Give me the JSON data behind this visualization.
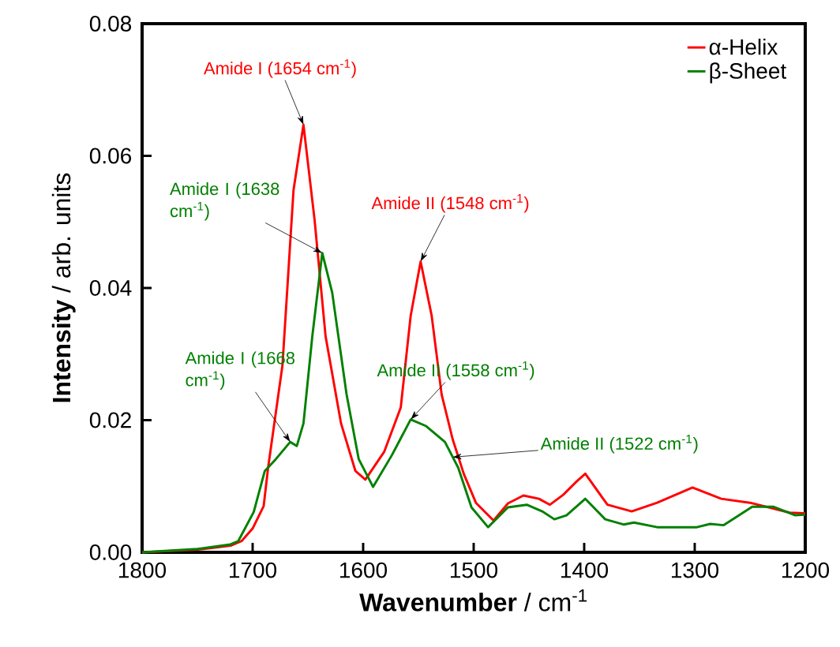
{
  "chart_data": {
    "type": "line",
    "xlabel": "**Wavenumber** / cm$^{-1}$",
    "ylabel": "**Intensity** / arb. units",
    "xlim": [
      1800,
      1200
    ],
    "xticks": [
      1800,
      1700,
      1600,
      1500,
      1400,
      1300,
      1200
    ],
    "ylim": [
      0,
      0.08
    ],
    "yticks": [
      {
        "value": 0,
        "label": "0.00"
      },
      {
        "value": 0.02,
        "label": "0.02"
      },
      {
        "value": 0.04,
        "label": "0.04"
      },
      {
        "value": 0.06,
        "label": "0.06"
      },
      {
        "value": 0.08,
        "label": "0.08"
      }
    ],
    "grid": false,
    "legend": "top right",
    "marker": "none",
    "line_style": "solid",
    "series": [
      {
        "name": "α-Helix",
        "color": "#ff0000",
        "x": [
          1800,
          1750,
          1720,
          1710,
          1700,
          1690,
          1686,
          1673,
          1663,
          1654,
          1644,
          1634,
          1620,
          1607,
          1598,
          1581,
          1566,
          1557,
          1548,
          1538,
          1529,
          1519,
          1509,
          1498,
          1482,
          1469,
          1455,
          1441,
          1431,
          1419,
          1407,
          1399,
          1379,
          1357,
          1334,
          1302,
          1276,
          1250,
          1214,
          1200
        ],
        "values": [
          0,
          0.0004,
          0.001,
          0.0017,
          0.0036,
          0.007,
          0.0128,
          0.0283,
          0.0548,
          0.0647,
          0.0504,
          0.0327,
          0.0195,
          0.0123,
          0.011,
          0.0152,
          0.0219,
          0.0358,
          0.044,
          0.0358,
          0.0239,
          0.0171,
          0.0119,
          0.0075,
          0.0048,
          0.0074,
          0.0086,
          0.0081,
          0.0072,
          0.0087,
          0.0107,
          0.0119,
          0.0072,
          0.0062,
          0.0075,
          0.0098,
          0.0081,
          0.0075,
          0.006,
          0.0059
        ]
      },
      {
        "name": "β-Sheet",
        "color": "#008000",
        "x": [
          1800,
          1750,
          1720,
          1713,
          1699,
          1689,
          1679,
          1666,
          1660,
          1654,
          1646,
          1637,
          1628,
          1615,
          1604,
          1591,
          1574,
          1557,
          1543,
          1526,
          1514,
          1502,
          1487,
          1469,
          1452,
          1438,
          1427,
          1416,
          1399,
          1381,
          1364,
          1355,
          1334,
          1298,
          1286,
          1274,
          1248,
          1229,
          1209,
          1200
        ],
        "values": [
          0,
          0.0005,
          0.0012,
          0.0017,
          0.0061,
          0.0123,
          0.0141,
          0.0167,
          0.0161,
          0.0195,
          0.0327,
          0.0453,
          0.0393,
          0.0239,
          0.0141,
          0.0099,
          0.0147,
          0.0201,
          0.0191,
          0.0167,
          0.0128,
          0.0068,
          0.0038,
          0.0068,
          0.0072,
          0.0062,
          0.005,
          0.0056,
          0.0081,
          0.005,
          0.0042,
          0.0045,
          0.0038,
          0.0038,
          0.0043,
          0.0041,
          0.0069,
          0.0069,
          0.0056,
          0.0057
        ]
      }
    ],
    "annotations": [
      {
        "text": "Amide I (1654 cm$^{-1}$)",
        "x": 1654,
        "y": 0.0647
      },
      {
        "text": "Amide I (1638 cm$^{-1}$)",
        "x": 1637,
        "y": 0.0453
      },
      {
        "text": "Amide II (1548 cm$^{-1}$)",
        "x": 1548,
        "y": 0.044
      },
      {
        "text": "Amide I (1668 cm$^{-1}$)",
        "x": 1666,
        "y": 0.0167
      },
      {
        "text": "Amide II (1558 cm$^{-1}$)",
        "x": 1557,
        "y": 0.0201
      },
      {
        "text": "Amide II (1522 cm$^{-1}$)",
        "x": 1519,
        "y": 0.0144
      }
    ]
  }
}
